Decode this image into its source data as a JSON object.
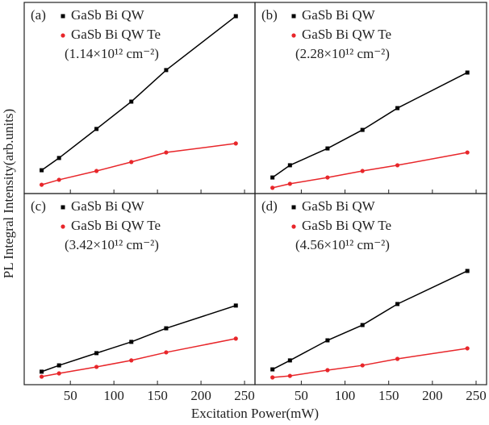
{
  "xlabel": "Excitation Power(mW)",
  "ylabel": "PL Integral Intensity(arb.units)",
  "chart_data": [
    {
      "type": "scatter",
      "label": "(a)",
      "annotation": "(1.14×10¹² cm⁻²)",
      "x": [
        17,
        37,
        80,
        120,
        160,
        240
      ],
      "xlim": [
        -3,
        262
      ],
      "xticks": [
        50,
        100,
        150,
        200,
        250
      ],
      "ylim": [
        0,
        100
      ],
      "series": [
        {
          "name": "GaSb Bi QW",
          "color": "#000000",
          "marker": "square",
          "values": [
            12.2,
            18.6,
            33.8,
            48.1,
            64.6,
            92.8
          ]
        },
        {
          "name": "GaSb Bi QW Te",
          "color": "#e8262a",
          "marker": "circle",
          "values": [
            4.6,
            7.2,
            11.8,
            16.5,
            21.5,
            26.2
          ]
        }
      ]
    },
    {
      "type": "scatter",
      "label": "(b)",
      "annotation": "(2.28×10¹² cm⁻²)",
      "x": [
        17,
        37,
        80,
        120,
        160,
        240
      ],
      "xlim": [
        -3,
        262
      ],
      "xticks": [
        50,
        100,
        150,
        200,
        250
      ],
      "ylim": [
        0,
        100
      ],
      "series": [
        {
          "name": "GaSb Bi QW",
          "color": "#000000",
          "marker": "square",
          "values": [
            8.4,
            14.8,
            23.6,
            33.3,
            44.7,
            63.3
          ]
        },
        {
          "name": "GaSb Bi QW Te",
          "color": "#e8262a",
          "marker": "circle",
          "values": [
            3.0,
            5.1,
            8.4,
            11.8,
            14.8,
            21.5
          ]
        }
      ]
    },
    {
      "type": "scatter",
      "label": "(c)",
      "annotation": "(3.42×10¹² cm⁻²)",
      "x": [
        17,
        37,
        80,
        120,
        160,
        240
      ],
      "xlim": [
        -3,
        262
      ],
      "xticks": [
        50,
        100,
        150,
        200,
        250
      ],
      "ylim": [
        0,
        100
      ],
      "series": [
        {
          "name": "GaSb Bi QW",
          "color": "#000000",
          "marker": "square",
          "values": [
            6.8,
            10.1,
            16.5,
            22.4,
            29.5,
            41.4
          ]
        },
        {
          "name": "GaSb Bi QW Te",
          "color": "#e8262a",
          "marker": "circle",
          "values": [
            4.2,
            5.9,
            9.3,
            12.7,
            16.9,
            24.1
          ]
        }
      ]
    },
    {
      "type": "scatter",
      "label": "(d)",
      "annotation": "(4.56×10¹² cm⁻²)",
      "x": [
        17,
        37,
        80,
        120,
        160,
        240
      ],
      "xlim": [
        -3,
        262
      ],
      "xticks": [
        50,
        100,
        150,
        200,
        250
      ],
      "ylim": [
        0,
        100
      ],
      "series": [
        {
          "name": "GaSb Bi QW",
          "color": "#000000",
          "marker": "square",
          "values": [
            8.0,
            12.7,
            23.2,
            31.2,
            42.2,
            59.5
          ]
        },
        {
          "name": "GaSb Bi QW Te",
          "color": "#e8262a",
          "marker": "circle",
          "values": [
            3.8,
            4.6,
            7.6,
            10.1,
            13.5,
            19.0
          ]
        }
      ]
    }
  ]
}
